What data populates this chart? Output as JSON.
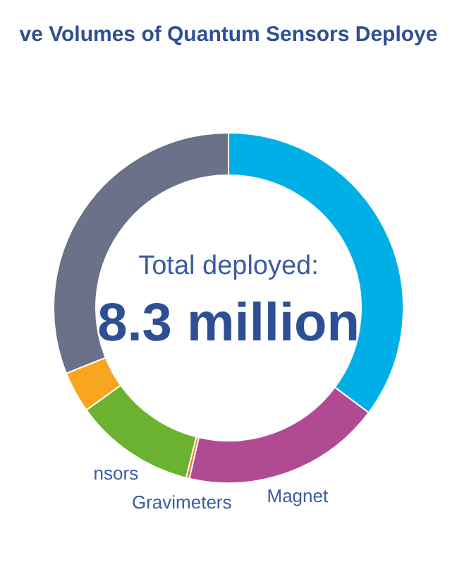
{
  "chart_data": {
    "type": "donut",
    "title": "ve Volumes of Quantum Sensors Deploye",
    "categories": [
      null,
      "Magnet",
      "Gravimeters",
      "nsors",
      null,
      null
    ],
    "values": [
      35.2,
      18.4,
      0.3,
      11.2,
      3.8,
      31.1
    ],
    "colors": [
      "#00afe5",
      "#b04a92",
      "#e8732c",
      "#6ab22f",
      "#f8a51f",
      "#6a7189"
    ],
    "annotations": [
      "Total deployed:",
      "8.3 million"
    ]
  }
}
